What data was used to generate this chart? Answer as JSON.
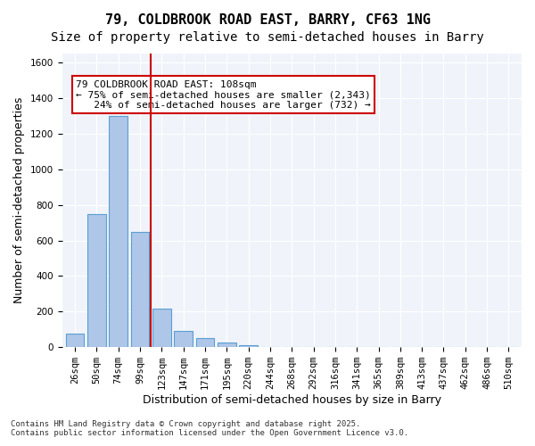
{
  "title1": "79, COLDBROOK ROAD EAST, BARRY, CF63 1NG",
  "title2": "Size of property relative to semi-detached houses in Barry",
  "xlabel": "Distribution of semi-detached houses by size in Barry",
  "ylabel": "Number of semi-detached properties",
  "categories": [
    "26sqm",
    "50sqm",
    "74sqm",
    "99sqm",
    "123sqm",
    "147sqm",
    "171sqm",
    "195sqm",
    "220sqm",
    "244sqm",
    "268sqm",
    "292sqm",
    "316sqm",
    "341sqm",
    "365sqm",
    "389sqm",
    "413sqm",
    "437sqm",
    "462sqm",
    "486sqm",
    "510sqm"
  ],
  "values": [
    75,
    750,
    1300,
    650,
    215,
    90,
    50,
    25,
    10,
    3,
    2,
    1,
    0,
    0,
    0,
    0,
    0,
    0,
    0,
    0,
    0
  ],
  "bar_color": "#aec6e8",
  "bar_edgecolor": "#5a9fd4",
  "vline_x": 3,
  "vline_color": "#cc0000",
  "annotation_text": "79 COLDBROOK ROAD EAST: 108sqm\n← 75% of semi-detached houses are smaller (2,343)\n   24% of semi-detached houses are larger (732) →",
  "annotation_box_color": "#cc0000",
  "ylim": [
    0,
    1650
  ],
  "yticks": [
    0,
    200,
    400,
    600,
    800,
    1000,
    1200,
    1400,
    1600
  ],
  "bg_color": "#f0f4fa",
  "footer_text": "Contains HM Land Registry data © Crown copyright and database right 2025.\nContains public sector information licensed under the Open Government Licence v3.0.",
  "title1_fontsize": 11,
  "title2_fontsize": 10,
  "xlabel_fontsize": 9,
  "ylabel_fontsize": 9,
  "tick_fontsize": 7.5,
  "annotation_fontsize": 8
}
